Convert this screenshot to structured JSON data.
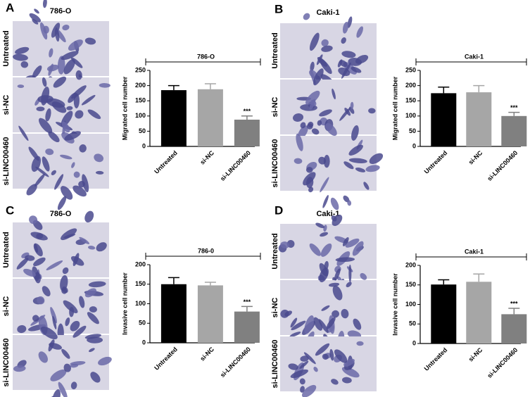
{
  "panels": [
    {
      "letter": "A",
      "image_title": "786-O",
      "image_labels": [
        "Untreated",
        "si-NC",
        "si-LINC00460"
      ]
    },
    {
      "letter": "B",
      "image_title": "Caki-1",
      "image_labels": [
        "Untreated",
        "si-NC",
        "si-LINC00460"
      ]
    },
    {
      "letter": "C",
      "image_title": "786-O",
      "image_labels": [
        "Untreated",
        "si-NC",
        "si-LINC00460"
      ]
    },
    {
      "letter": "D",
      "image_title": "Caki-1",
      "image_labels": [
        "Untreated",
        "si-NC",
        "si-LINC00460"
      ]
    }
  ],
  "chart_data": [
    {
      "type": "bar",
      "title": "786-O",
      "ylabel": "Migrated cell number",
      "categories": [
        "Untreated",
        "si-NC",
        "si-LINC00460"
      ],
      "values": [
        185,
        188,
        88
      ],
      "errors": [
        15,
        18,
        12
      ],
      "colors": [
        "#000000",
        "#a6a6a6",
        "#808080"
      ],
      "significance": [
        null,
        null,
        "***"
      ],
      "ylim": [
        0,
        250
      ],
      "yticks": [
        0,
        50,
        100,
        150,
        200,
        250
      ]
    },
    {
      "type": "bar",
      "title": "Caki-1",
      "ylabel": "Migrated cell number",
      "categories": [
        "Untreated",
        "si-NC",
        "si-LINC00460"
      ],
      "values": [
        175,
        178,
        100
      ],
      "errors": [
        20,
        22,
        12
      ],
      "colors": [
        "#000000",
        "#a6a6a6",
        "#808080"
      ],
      "significance": [
        null,
        null,
        "***"
      ],
      "ylim": [
        0,
        250
      ],
      "yticks": [
        0,
        50,
        100,
        150,
        200,
        250
      ]
    },
    {
      "type": "bar",
      "title": "786-0",
      "ylabel": "Invasive cell number",
      "categories": [
        "Untreated",
        "si-NC",
        "si-LINC00460"
      ],
      "values": [
        150,
        147,
        80
      ],
      "errors": [
        17,
        8,
        13
      ],
      "colors": [
        "#000000",
        "#a6a6a6",
        "#808080"
      ],
      "significance": [
        null,
        null,
        "***"
      ],
      "ylim": [
        0,
        200
      ],
      "yticks": [
        0,
        50,
        100,
        150,
        200
      ]
    },
    {
      "type": "bar",
      "title": "Caki-1",
      "ylabel": "Invasive cell number",
      "categories": [
        "Untreated",
        "si-NC",
        "si-LINC00460"
      ],
      "values": [
        151,
        158,
        75
      ],
      "errors": [
        12,
        20,
        15
      ],
      "colors": [
        "#000000",
        "#a6a6a6",
        "#808080"
      ],
      "significance": [
        null,
        null,
        "***"
      ],
      "ylim": [
        0,
        200
      ],
      "yticks": [
        0,
        50,
        100,
        150,
        200
      ]
    }
  ]
}
